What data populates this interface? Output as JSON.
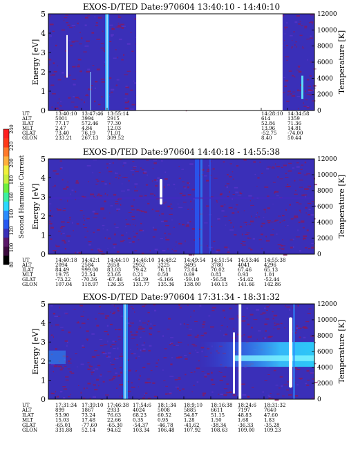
{
  "chart_data": [
    {
      "type": "heatmap",
      "title": "EXOS-D/TED   Date:970604   13:40:10 - 14:40:10",
      "ylabel": "Energy [eV]",
      "y2label": "Temperature [K]",
      "ylim": [
        0,
        5
      ],
      "y2lim": [
        0,
        12000
      ],
      "y_ticks": [
        "0",
        "1",
        "2",
        "3",
        "4",
        "5"
      ],
      "y2_ticks": [
        "0",
        "2000",
        "4000",
        "6000",
        "8000",
        "10000",
        "12000"
      ],
      "data_gaps": [
        [
          0.33,
          0.88
        ]
      ],
      "ephemeris": {
        "row_labels": [
          "UT",
          "ALT",
          "ILAT",
          "MLT",
          "GLAT",
          "GLON"
        ],
        "columns": [
          {
            "UT": "13:40:10",
            "ALT": "5001",
            "ILAT": "77.17",
            "MLT": "2.47",
            "GLAT": "73.40",
            "GLON": "233.21"
          },
          {
            "UT": "13:47:46",
            "ALT": "3994",
            "ILAT": "572.46",
            "MLT": "4.84",
            "GLAT": "76.19",
            "GLON": "267.13"
          },
          {
            "UT": "13:55:14",
            "ALT": "2915",
            "ILAT": "77.30",
            "MLT": "12.03",
            "GLAT": "71.01",
            "GLON": "309.52"
          },
          {
            "UT": "14:28:10",
            "ALT": "614",
            "ILAT": "52.84",
            "MLT": "13.96",
            "GLAT": "-52.75",
            "GLON": "8.40"
          },
          {
            "UT": "14:34:58",
            "ALT": "1359",
            "ILAT": "71.36",
            "MLT": "14.81",
            "GLAT": "-74.00",
            "GLON": "50.44"
          }
        ]
      }
    },
    {
      "type": "heatmap",
      "title": "EXOS-D/TED   Date:970604   14:40:18 - 14:55:38",
      "ylabel": "Energy [eV]",
      "y2label": "Temperature [K]",
      "ylim": [
        0,
        5
      ],
      "y2lim": [
        0,
        12000
      ],
      "y_ticks": [
        "0",
        "1",
        "2",
        "3",
        "4",
        "5"
      ],
      "y2_ticks": [
        "0",
        "2000",
        "4000",
        "6000",
        "8000",
        "10000",
        "12000"
      ],
      "data_gaps": [],
      "colorbar": {
        "label": "Second Harmonic Current",
        "ticks": [
          "80",
          "100",
          "120",
          "140",
          "160",
          "180",
          "200",
          "220",
          "240"
        ]
      },
      "ephemeris": {
        "row_labels": [
          "UT",
          "ALT",
          "ILAT",
          "MLT",
          "GLAT",
          "GLON"
        ],
        "columns": [
          {
            "UT": "14:40:18",
            "ALT": "2094",
            "ILAT": "84.49",
            "MLT": "19.75",
            "GLAT": "-73.22",
            "GLON": "107.04"
          },
          {
            "UT": "14:42:1",
            "ALT": "2584",
            "ILAT": "999.00",
            "MLT": "22.54",
            "GLAT": "-70.36",
            "GLON": "118.97"
          },
          {
            "UT": "14:44:10",
            "ALT": "2658",
            "ILAT": "83.03",
            "MLT": "23.65",
            "GLAT": "-67.46",
            "GLON": "126.35"
          },
          {
            "UT": "14:46:10",
            "ALT": "2952",
            "ILAT": "79.42",
            "MLT": "0.21",
            "GLAT": "-64.39",
            "GLON": "131.77"
          },
          {
            "UT": "14:48:2",
            "ALT": "3225",
            "ILAT": "76.11",
            "MLT": "0.50",
            "GLAT": "-6.166",
            "GLON": "135.36"
          },
          {
            "UT": "14:49:54",
            "ALT": "3495",
            "ILAT": "73.04",
            "MLT": "0.69",
            "GLAT": "-59.10",
            "GLON": "138.00"
          },
          {
            "UT": "14:51:54",
            "ALT": "3780",
            "ILAT": "70.02",
            "MLT": "0.83",
            "GLAT": "-56.58",
            "GLON": "140.13"
          },
          {
            "UT": "14:53:46",
            "ALT": "4041",
            "ILAT": "67.46",
            "MLT": "0.93",
            "GLAT": "-54.42",
            "GLON": "141.66"
          },
          {
            "UT": "14:55:38",
            "ALT": "4296",
            "ILAT": "65.13",
            "MLT": "1.01",
            "GLAT": "-52.44",
            "GLON": "142.86"
          }
        ]
      }
    },
    {
      "type": "heatmap",
      "title": "EXOS-D/TED   Date:970604   17:31:34 - 18:31:32",
      "ylabel": "Energy [eV]",
      "y2label": "Temperature [K]",
      "ylim": [
        0,
        5
      ],
      "y2lim": [
        0,
        12000
      ],
      "y_ticks": [
        "0",
        "1",
        "2",
        "3",
        "4",
        "5"
      ],
      "y2_ticks": [
        "0",
        "2000",
        "4000",
        "6000",
        "8000",
        "10000",
        "12000"
      ],
      "data_gaps": [
        [
          0.715,
          0.725
        ]
      ],
      "ephemeris": {
        "row_labels": [
          "UT",
          "ALT",
          "ILAT",
          "MLT",
          "GLAT",
          "GLON"
        ],
        "columns": [
          {
            "UT": "17:31:34",
            "ALT": "899",
            "ILAT": "53.90",
            "MLT": "15.03",
            "GLAT": "-65.01",
            "GLON": "331.88"
          },
          {
            "UT": "17:39:10",
            "ALT": "1867",
            "ILAT": "73.24",
            "MLT": "17.48",
            "GLAT": "-77.60",
            "GLON": "52.14"
          },
          {
            "UT": "17:46:38",
            "ALT": "2933",
            "ILAT": "76.63",
            "MLT": "22.66",
            "GLAT": "-65.30",
            "GLON": "94.62"
          },
          {
            "UT": "17:54:6",
            "ALT": "4024",
            "ILAT": "68.23",
            "MLT": "0.35",
            "GLAT": "-54.37",
            "GLON": "103.34"
          },
          {
            "UT": "18:1:34",
            "ALT": "5008",
            "ILAT": "60.52",
            "MLT": "0.95",
            "GLAT": "-46.78",
            "GLON": "106.48"
          },
          {
            "UT": "18:9:10",
            "ALT": "5885",
            "ILAT": "54.87",
            "MLT": "1.28",
            "GLAT": "-41.62",
            "GLON": "107.92"
          },
          {
            "UT": "18:16:38",
            "ALT": "6611",
            "ILAT": "51.15",
            "MLT": "1.50",
            "GLAT": "-38.34",
            "GLON": "108.63"
          },
          {
            "UT": "18:24:6",
            "ALT": "7197",
            "ILAT": "48.83",
            "MLT": "1.68",
            "GLAT": "-36.33",
            "GLON": "109.00"
          },
          {
            "UT": "18:31:32",
            "ALT": "7640",
            "ILAT": "47.60",
            "MLT": "1.83",
            "GLAT": "-35.28",
            "GLON": "109.23"
          }
        ]
      }
    }
  ],
  "colors": {
    "background_field": "#3a2fb8",
    "speckle": "#8b1a5a",
    "bright_band": "#2aa8ff",
    "gap": "#ffffff"
  }
}
